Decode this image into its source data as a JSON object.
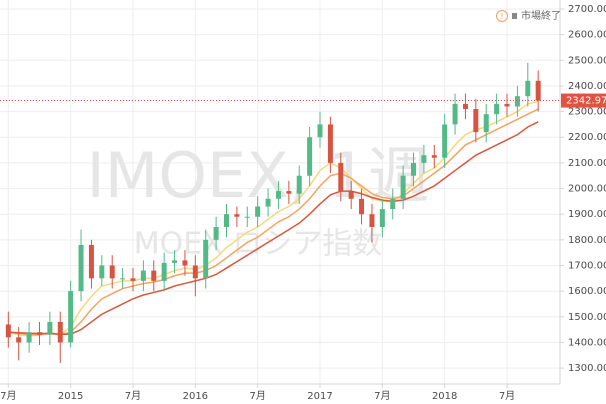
{
  "chart_data": {
    "type": "candlestick",
    "watermark": "IMOEX, 1週",
    "watermark_sub": "MOEX ロシア指数",
    "status": "市場終了",
    "xlim": [
      -0.8,
      53.1
    ],
    "ylim": [
      1238,
      2735
    ],
    "xticks": [
      {
        "value": 0,
        "label": "7月"
      },
      {
        "value": 6,
        "label": "2015"
      },
      {
        "value": 12,
        "label": "7月"
      },
      {
        "value": 18,
        "label": "2016"
      },
      {
        "value": 24,
        "label": "7月"
      },
      {
        "value": 30,
        "label": "2017"
      },
      {
        "value": 36,
        "label": "7月"
      },
      {
        "value": 42,
        "label": "2018"
      },
      {
        "value": 48,
        "label": "7月"
      }
    ],
    "yticks": [
      {
        "value": 1300,
        "label": "1300.00"
      },
      {
        "value": 1400,
        "label": "1400.00"
      },
      {
        "value": 1500,
        "label": "1500.00"
      },
      {
        "value": 1600,
        "label": "1600.00"
      },
      {
        "value": 1700,
        "label": "1700.00"
      },
      {
        "value": 1800,
        "label": "1800.00"
      },
      {
        "value": 1900,
        "label": "1900.00"
      },
      {
        "value": 2000,
        "label": "2000.00"
      },
      {
        "value": 2100,
        "label": "2100.00"
      },
      {
        "value": 2200,
        "label": "2200.00"
      },
      {
        "value": 2300,
        "label": "2300.00"
      },
      {
        "value": 2400,
        "label": "2400.00"
      },
      {
        "value": 2500,
        "label": "2500.00"
      },
      {
        "value": 2600,
        "label": "2600.00"
      },
      {
        "value": 2700,
        "label": "2700.00"
      }
    ],
    "grid": true,
    "up_color": "#53b987",
    "down_color": "#d75442",
    "last_price": 2342.97,
    "last_price_color": "#e0533f",
    "candles": {
      "x": [
        0,
        1,
        2,
        3,
        4,
        5,
        6,
        7,
        8,
        9,
        10,
        11,
        12,
        13,
        14,
        15,
        16,
        17,
        18,
        19,
        20,
        21,
        22,
        23,
        24,
        25,
        26,
        27,
        28,
        29,
        30,
        31,
        32,
        33,
        34,
        35,
        36,
        37,
        38,
        39,
        40,
        41,
        42,
        43,
        44,
        45,
        46,
        47,
        48,
        49,
        50,
        51
      ],
      "open": [
        1470,
        1420,
        1400,
        1440,
        1430,
        1480,
        1400,
        1600,
        1780,
        1650,
        1700,
        1650,
        1650,
        1640,
        1680,
        1640,
        1710,
        1720,
        1700,
        1650,
        1800,
        1850,
        1900,
        1890,
        1890,
        1930,
        1960,
        1990,
        1980,
        2050,
        2200,
        2250,
        2100,
        1990,
        1960,
        1900,
        1850,
        1920,
        1960,
        2050,
        2100,
        2130,
        2120,
        2250,
        2330,
        2310,
        2220,
        2290,
        2330,
        2320,
        2360,
        2420
      ],
      "high": [
        1520,
        1460,
        1480,
        1480,
        1520,
        1520,
        1640,
        1840,
        1800,
        1740,
        1740,
        1690,
        1690,
        1720,
        1720,
        1750,
        1760,
        1760,
        1740,
        1840,
        1890,
        1940,
        1930,
        1930,
        1970,
        2000,
        2030,
        2030,
        2090,
        2240,
        2300,
        2280,
        2140,
        2030,
        2000,
        1940,
        1960,
        2000,
        2090,
        2140,
        2170,
        2170,
        2290,
        2370,
        2370,
        2350,
        2330,
        2370,
        2370,
        2400,
        2490,
        2460
      ],
      "low": [
        1380,
        1330,
        1360,
        1390,
        1390,
        1320,
        1380,
        1560,
        1610,
        1620,
        1610,
        1610,
        1600,
        1600,
        1600,
        1600,
        1670,
        1660,
        1580,
        1610,
        1760,
        1810,
        1850,
        1850,
        1850,
        1890,
        1920,
        1940,
        1940,
        2010,
        2160,
        2060,
        1950,
        1920,
        1860,
        1790,
        1810,
        1880,
        1920,
        2010,
        2060,
        2080,
        2080,
        2210,
        2270,
        2180,
        2180,
        2250,
        2280,
        2280,
        2320,
        2300
      ],
      "close": [
        1420,
        1400,
        1440,
        1430,
        1480,
        1400,
        1600,
        1780,
        1650,
        1700,
        1650,
        1650,
        1640,
        1680,
        1640,
        1710,
        1720,
        1700,
        1650,
        1800,
        1850,
        1900,
        1890,
        1890,
        1930,
        1960,
        1990,
        1980,
        2050,
        2200,
        2250,
        2100,
        1990,
        1960,
        1900,
        1850,
        1920,
        1960,
        2050,
        2100,
        2130,
        2120,
        2250,
        2330,
        2310,
        2220,
        2290,
        2330,
        2320,
        2360,
        2420,
        2342.97
      ]
    },
    "series": [
      {
        "color": "#f9d77e",
        "values": [
          1440,
          1430,
          1425,
          1428,
          1440,
          1430,
          1460,
          1530,
          1580,
          1620,
          1630,
          1640,
          1640,
          1650,
          1650,
          1665,
          1680,
          1690,
          1685,
          1700,
          1730,
          1770,
          1800,
          1830,
          1850,
          1880,
          1910,
          1930,
          1960,
          2010,
          2070,
          2100,
          2080,
          2040,
          2000,
          1960,
          1950,
          1950,
          1980,
          2020,
          2060,
          2080,
          2120,
          2170,
          2210,
          2230,
          2240,
          2260,
          2280,
          2300,
          2330,
          2340
        ]
      },
      {
        "color": "#f4a460",
        "values": [
          1440,
          1435,
          1430,
          1430,
          1435,
          1430,
          1440,
          1480,
          1530,
          1570,
          1590,
          1610,
          1620,
          1630,
          1635,
          1645,
          1660,
          1670,
          1670,
          1680,
          1700,
          1730,
          1760,
          1790,
          1810,
          1840,
          1870,
          1890,
          1920,
          1960,
          2010,
          2050,
          2060,
          2040,
          2010,
          1980,
          1965,
          1960,
          1970,
          2000,
          2030,
          2060,
          2090,
          2130,
          2170,
          2190,
          2210,
          2230,
          2250,
          2270,
          2290,
          2310
        ]
      },
      {
        "color": "#d9573c",
        "values": [
          1440,
          1438,
          1436,
          1435,
          1435,
          1432,
          1432,
          1450,
          1480,
          1510,
          1530,
          1550,
          1570,
          1585,
          1595,
          1605,
          1620,
          1630,
          1640,
          1650,
          1665,
          1690,
          1715,
          1740,
          1765,
          1790,
          1815,
          1840,
          1865,
          1900,
          1940,
          1975,
          1990,
          1990,
          1980,
          1965,
          1955,
          1950,
          1955,
          1970,
          1990,
          2010,
          2040,
          2070,
          2100,
          2130,
          2150,
          2170,
          2190,
          2210,
          2240,
          2260
        ]
      }
    ]
  }
}
